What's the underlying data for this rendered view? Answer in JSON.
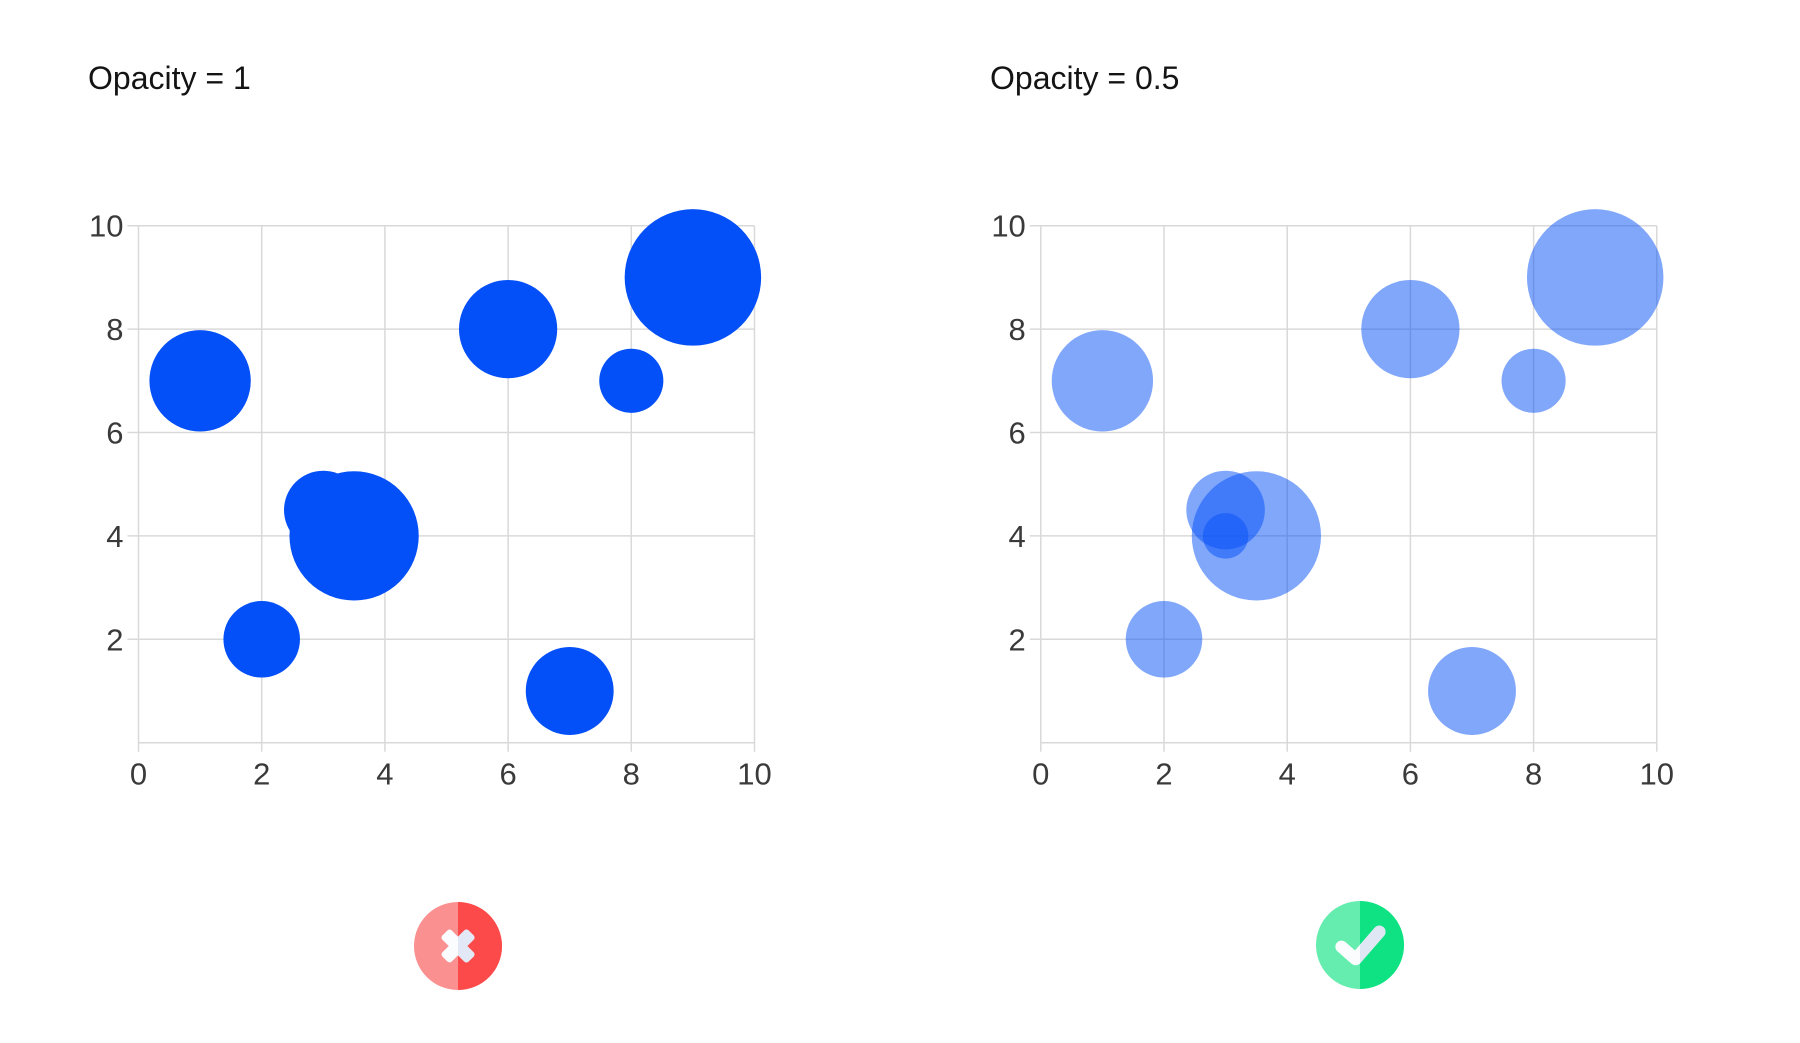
{
  "page": {
    "background": "#FFFFFF"
  },
  "style": {
    "grid_color": "#D9D9D9",
    "tick_label_color": "#3A3A3A",
    "title_color": "#141414",
    "marker_blue": "#034FF8"
  },
  "chart_data": [
    {
      "type": "scatter",
      "title": "Opacity = 1",
      "marker_color": "#034FF8",
      "marker_opacity": 1,
      "xlabel": "",
      "ylabel": "",
      "xlim": [
        0,
        10
      ],
      "ylim": [
        0,
        10
      ],
      "x_ticks": [
        0,
        2,
        4,
        6,
        8,
        10
      ],
      "y_ticks": [
        2,
        4,
        6,
        8,
        10
      ],
      "grid": true,
      "points": [
        {
          "x": 1,
          "y": 7,
          "r": 0.98
        },
        {
          "x": 6,
          "y": 8,
          "r": 0.95
        },
        {
          "x": 8,
          "y": 7,
          "r": 0.62
        },
        {
          "x": 9,
          "y": 9,
          "r": 1.32
        },
        {
          "x": 3,
          "y": 4.5,
          "r": 0.76
        },
        {
          "x": 3.5,
          "y": 4,
          "r": 1.25
        },
        {
          "x": 3,
          "y": 4,
          "r": 0.44
        },
        {
          "x": 2,
          "y": 2,
          "r": 0.74
        },
        {
          "x": 7,
          "y": 1,
          "r": 0.85
        }
      ]
    },
    {
      "type": "scatter",
      "title": "Opacity = 0.5",
      "marker_color": "#034FF8",
      "marker_opacity": 0.5,
      "xlabel": "",
      "ylabel": "",
      "xlim": [
        0,
        10
      ],
      "ylim": [
        0,
        10
      ],
      "x_ticks": [
        0,
        2,
        4,
        6,
        8,
        10
      ],
      "y_ticks": [
        2,
        4,
        6,
        8,
        10
      ],
      "grid": true,
      "points": [
        {
          "x": 1,
          "y": 7,
          "r": 0.98
        },
        {
          "x": 6,
          "y": 8,
          "r": 0.95
        },
        {
          "x": 8,
          "y": 7,
          "r": 0.62
        },
        {
          "x": 9,
          "y": 9,
          "r": 1.32
        },
        {
          "x": 3,
          "y": 4.5,
          "r": 0.76
        },
        {
          "x": 3.5,
          "y": 4,
          "r": 1.25
        },
        {
          "x": 3,
          "y": 4,
          "r": 0.44
        },
        {
          "x": 2,
          "y": 2,
          "r": 0.74
        },
        {
          "x": 7,
          "y": 1,
          "r": 0.85
        }
      ]
    }
  ],
  "badges": [
    {
      "label": "incorrect",
      "icon": "x-icon",
      "color_left": "#FA9090",
      "color_right": "#FC4A4A",
      "icon_bright": "#FBFCFE",
      "icon_shade": "#E2E8F5"
    },
    {
      "label": "correct",
      "icon": "check-icon",
      "color_left": "#64EDAE",
      "color_right": "#0FE282",
      "icon_bright": "#FBFCFE",
      "icon_shade": "#E0E7F4"
    }
  ]
}
